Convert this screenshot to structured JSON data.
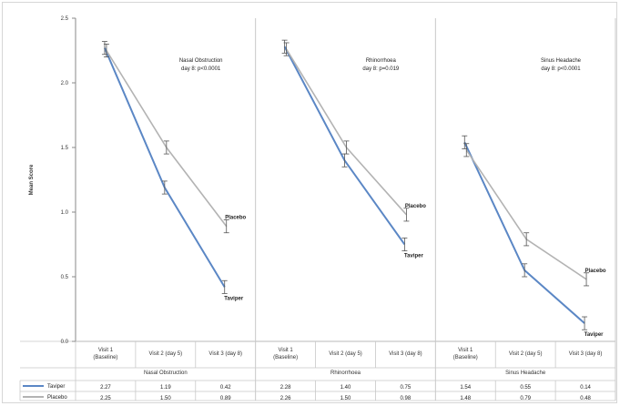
{
  "colors": {
    "taviper": "#5b87c5",
    "placebo": "#b3b3b3",
    "errorbar": "#555555",
    "grid": "#d0d0d0"
  },
  "chart_data": {
    "type": "line",
    "ylabel": "Mean Score",
    "ylim": [
      0,
      2.5
    ],
    "yticks": [
      "0.0",
      "0.5",
      "1.0",
      "1.5",
      "2.0",
      "2.5"
    ],
    "grid": false,
    "groups": [
      {
        "name": "Nasal Obstruction",
        "categories": [
          "Visit 1 (Baseline)",
          "Visit 2 (day 5)",
          "Visit 3 (day 8)"
        ],
        "annotation": [
          "Nasal Obstruction",
          "day 8: p<0.0001"
        ]
      },
      {
        "name": "Rhinorrhoea",
        "categories": [
          "Visit 1 (Baseline)",
          "Visit 2 (day 5)",
          "Visit 3 (day 8)"
        ],
        "annotation": [
          "Rhinorrhoea",
          "day 8: p=0.019"
        ]
      },
      {
        "name": "Sinus Headache",
        "categories": [
          "Visit 1 (Baseline)",
          "Visit 2 (day 5)",
          "Visit 3 (day 8)"
        ],
        "annotation": [
          "Sinus Headache",
          "day 8: p<0.0001"
        ]
      }
    ],
    "series": [
      {
        "name": "Taviper",
        "label": "Taviper",
        "values": [
          [
            2.27,
            1.19,
            0.42
          ],
          [
            2.28,
            1.4,
            0.75
          ],
          [
            1.54,
            0.55,
            0.14
          ]
        ],
        "table_values": [
          [
            "2.27",
            "1.19",
            "0.42"
          ],
          [
            "2.28",
            "1.40",
            "0.75"
          ],
          [
            "1.54",
            "0.55",
            "0.14"
          ]
        ],
        "error": 0.05
      },
      {
        "name": "Placebo",
        "label": "Placebo",
        "values": [
          [
            2.25,
            1.5,
            0.89
          ],
          [
            2.26,
            1.5,
            0.98
          ],
          [
            1.48,
            0.79,
            0.48
          ]
        ],
        "table_values": [
          [
            "2.25",
            "1.50",
            "0.89"
          ],
          [
            "2.26",
            "1.50",
            "0.98"
          ],
          [
            "1.48",
            "0.79",
            "0.48"
          ]
        ],
        "error": 0.05
      }
    ]
  }
}
